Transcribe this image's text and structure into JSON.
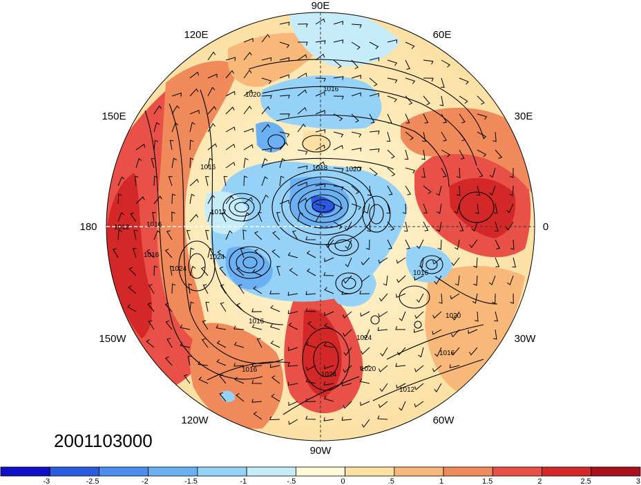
{
  "map": {
    "timestamp": "2001103000",
    "longitude_labels": {
      "lon_90e": "90E",
      "lon_120e": "120E",
      "lon_60e": "60E",
      "lon_150e": "150E",
      "lon_30e": "30E",
      "lon_180": "180",
      "lon_0": "0",
      "lon_150w": "150W",
      "lon_30w": "30W",
      "lon_120w": "120W",
      "lon_60w": "60W",
      "lon_90w": "90W"
    },
    "isobar_labels": {
      "i1": "1016",
      "i2": "1020",
      "i3": "1016",
      "i4": "1018",
      "i5": "1020",
      "i6": "1012",
      "i7": "1016",
      "i8": "1016",
      "i9": "1024",
      "i10": "1024",
      "i11": "1012",
      "i12": "1016",
      "i13": "1016",
      "i14": "1020",
      "i15": "1016",
      "i16": "1024",
      "i17": "1020",
      "i18": "1012",
      "i19": "1016",
      "i20": "1024"
    }
  },
  "colorbar": {
    "tick_labels": [
      "-3",
      "-2.5",
      "-2",
      "-1.5",
      "-1",
      "-.5",
      "0",
      ".5",
      "1",
      "1.5",
      "2",
      "2.5",
      "3"
    ],
    "colors": [
      "#1010c8",
      "#2a5ae0",
      "#4a8ef0",
      "#6cb0f4",
      "#96d2f8",
      "#c6ecfa",
      "#fff8d8",
      "#fce0a4",
      "#f8b87a",
      "#f08a5a",
      "#e85048",
      "#d42828",
      "#a8101c"
    ]
  }
}
